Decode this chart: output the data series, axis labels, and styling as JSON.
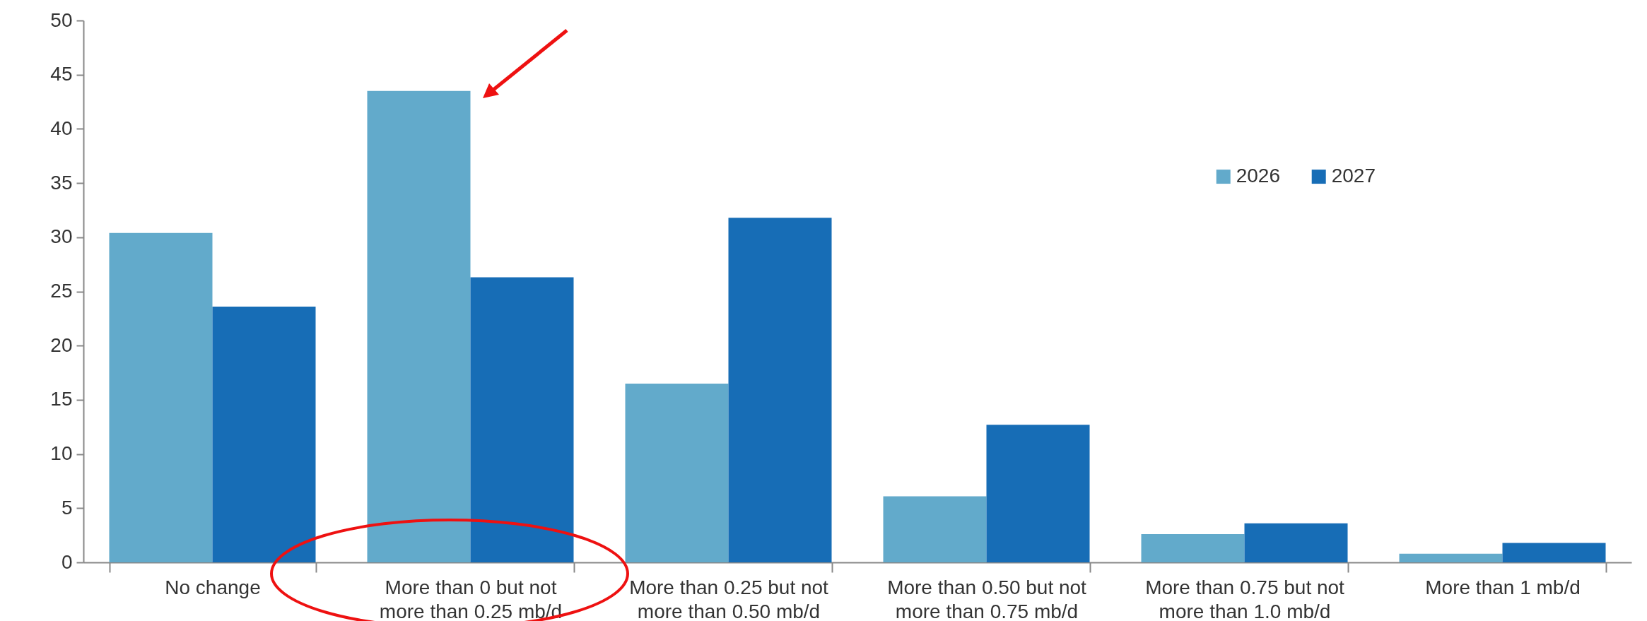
{
  "chart_data": {
    "type": "bar",
    "categories": [
      "No change",
      "More than 0 but not more than 0.25 mb/d",
      "More than 0.25 but not more than 0.50 mb/d",
      "More than 0.50 but not more than 0.75 mb/d",
      "More than 0.75 but not more than 1.0 mb/d",
      "More than 1 mb/d"
    ],
    "series": [
      {
        "name": "2026",
        "color": "#62aacb",
        "values": [
          30.4,
          43.5,
          16.5,
          6.1,
          2.6,
          0.8
        ]
      },
      {
        "name": "2027",
        "color": "#176db6",
        "values": [
          23.6,
          26.3,
          31.8,
          12.7,
          3.6,
          1.8
        ]
      }
    ],
    "ylim": [
      0,
      50
    ],
    "yticks": [
      0,
      5,
      10,
      15,
      20,
      25,
      30,
      35,
      40,
      45,
      50
    ],
    "grid": false,
    "legend": "top right"
  }
}
